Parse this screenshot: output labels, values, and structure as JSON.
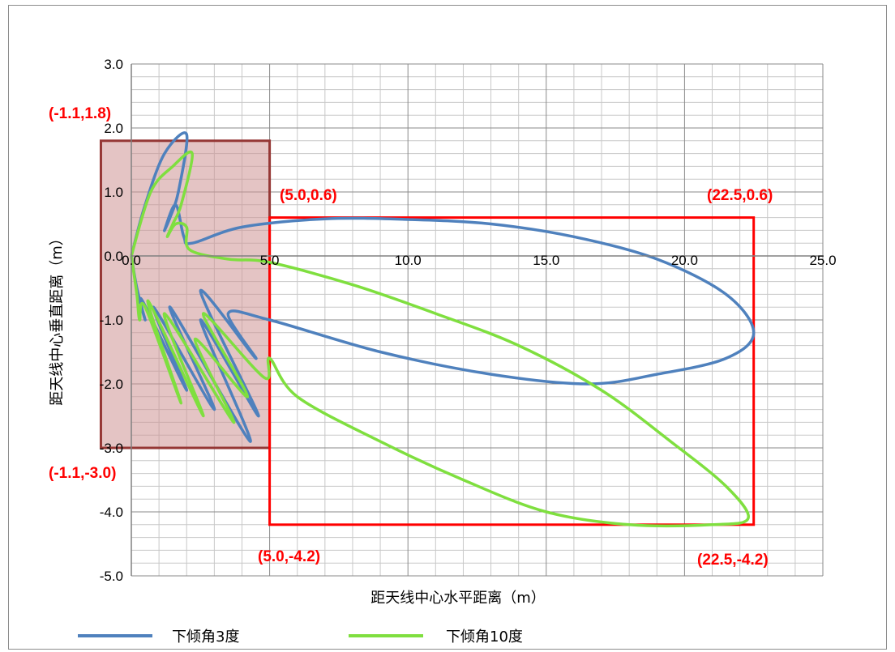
{
  "chart_data": {
    "type": "line",
    "xlabel": "距天线中心水平距离（m）",
    "ylabel": "距天线中心垂直距离（m）",
    "xlim": [
      0,
      25
    ],
    "ylim": [
      -5,
      3
    ],
    "x_ticks": [
      0,
      5,
      10,
      15,
      20,
      25
    ],
    "x_tick_labels": [
      "0.0",
      "5.0",
      "10.0",
      "15.0",
      "20.0",
      "25.0"
    ],
    "y_ticks": [
      3,
      2,
      1,
      0,
      -1,
      -2,
      -3,
      -4,
      -5
    ],
    "y_tick_labels": [
      "3.0",
      "2.0",
      "1.0",
      "0.0",
      "-1.0",
      "-2.0",
      "-3.0",
      "-4.0",
      "-5.0"
    ],
    "grid": true,
    "legend_position": "bottom",
    "series": [
      {
        "name": "下倾角3度",
        "color": "#4f81bd",
        "points": [
          [
            0,
            0
          ],
          [
            0.5,
            0.8
          ],
          [
            1.2,
            1.6
          ],
          [
            2.0,
            1.9
          ],
          [
            1.7,
            1.0
          ],
          [
            1.4,
            0.6
          ],
          [
            1.2,
            0.4
          ],
          [
            1.6,
            0.8
          ],
          [
            1.9,
            0.3
          ],
          [
            2.2,
            0.2
          ],
          [
            4.0,
            0.45
          ],
          [
            7.0,
            0.58
          ],
          [
            10.0,
            0.57
          ],
          [
            13.0,
            0.5
          ],
          [
            16.0,
            0.3
          ],
          [
            19.0,
            -0.05
          ],
          [
            21.5,
            -0.6
          ],
          [
            22.5,
            -1.2
          ],
          [
            21.5,
            -1.6
          ],
          [
            19.0,
            -1.85
          ],
          [
            16.5,
            -2.0
          ],
          [
            13.0,
            -1.85
          ],
          [
            9.0,
            -1.5
          ],
          [
            5.0,
            -1.0
          ],
          [
            3.5,
            -0.9
          ],
          [
            4.5,
            -1.6
          ],
          [
            2.5,
            -0.55
          ],
          [
            4.6,
            -2.5
          ],
          [
            2.5,
            -1.0
          ],
          [
            4.3,
            -2.9
          ],
          [
            1.4,
            -0.8
          ],
          [
            3.0,
            -2.4
          ],
          [
            0.8,
            -0.8
          ],
          [
            2.0,
            -2.1
          ],
          [
            0.4,
            -0.7
          ],
          [
            0.5,
            -1.0
          ],
          [
            0.2,
            -0.5
          ],
          [
            0,
            0
          ]
        ]
      },
      {
        "name": "下倾角10度",
        "color": "#7fdf3f",
        "points": [
          [
            0,
            0
          ],
          [
            0.7,
            1.0
          ],
          [
            1.5,
            1.4
          ],
          [
            2.2,
            1.6
          ],
          [
            1.8,
            0.8
          ],
          [
            1.5,
            0.5
          ],
          [
            1.3,
            0.3
          ],
          [
            1.6,
            0.5
          ],
          [
            2.0,
            0.45
          ],
          [
            2.1,
            0.1
          ],
          [
            3.5,
            -0.05
          ],
          [
            5.0,
            -0.1
          ],
          [
            8.0,
            -0.45
          ],
          [
            11.0,
            -0.9
          ],
          [
            14.0,
            -1.4
          ],
          [
            17.0,
            -2.1
          ],
          [
            19.5,
            -2.9
          ],
          [
            21.5,
            -3.6
          ],
          [
            22.3,
            -4.1
          ],
          [
            21.0,
            -4.2
          ],
          [
            18.0,
            -4.2
          ],
          [
            15.0,
            -4.0
          ],
          [
            12.0,
            -3.5
          ],
          [
            9.0,
            -2.9
          ],
          [
            6.0,
            -2.2
          ],
          [
            5.0,
            -1.6
          ],
          [
            4.8,
            -1.9
          ],
          [
            2.6,
            -0.9
          ],
          [
            4.2,
            -2.2
          ],
          [
            2.3,
            -1.3
          ],
          [
            3.7,
            -2.6
          ],
          [
            1.2,
            -0.9
          ],
          [
            2.6,
            -2.5
          ],
          [
            0.6,
            -0.7
          ],
          [
            1.8,
            -2.3
          ],
          [
            0.5,
            -0.8
          ],
          [
            0.3,
            -1.0
          ],
          [
            0.2,
            -0.6
          ],
          [
            0,
            0
          ]
        ]
      }
    ],
    "regions": [
      {
        "x0": -1.1,
        "x1": 5.0,
        "y0": -3.0,
        "y1": 1.8,
        "fill": "#cd9494",
        "stroke": "#953735"
      },
      {
        "x0": 5.0,
        "x1": 22.5,
        "y0": -4.2,
        "y1": 0.6,
        "fill": "none",
        "stroke": "#ff0000"
      }
    ],
    "annotations": [
      {
        "label": "(-1.1,1.8)",
        "color": "#ff0000"
      },
      {
        "label": "(-1.1,-3.0)",
        "color": "#ff0000"
      },
      {
        "label": "(5.0,0.6)",
        "color": "#ff0000"
      },
      {
        "label": "(22.5,0.6)",
        "color": "#ff0000"
      },
      {
        "label": "(5.0,-4.2)",
        "color": "#ff0000"
      },
      {
        "label": "(22.5,-4.2)",
        "color": "#ff0000"
      }
    ]
  }
}
